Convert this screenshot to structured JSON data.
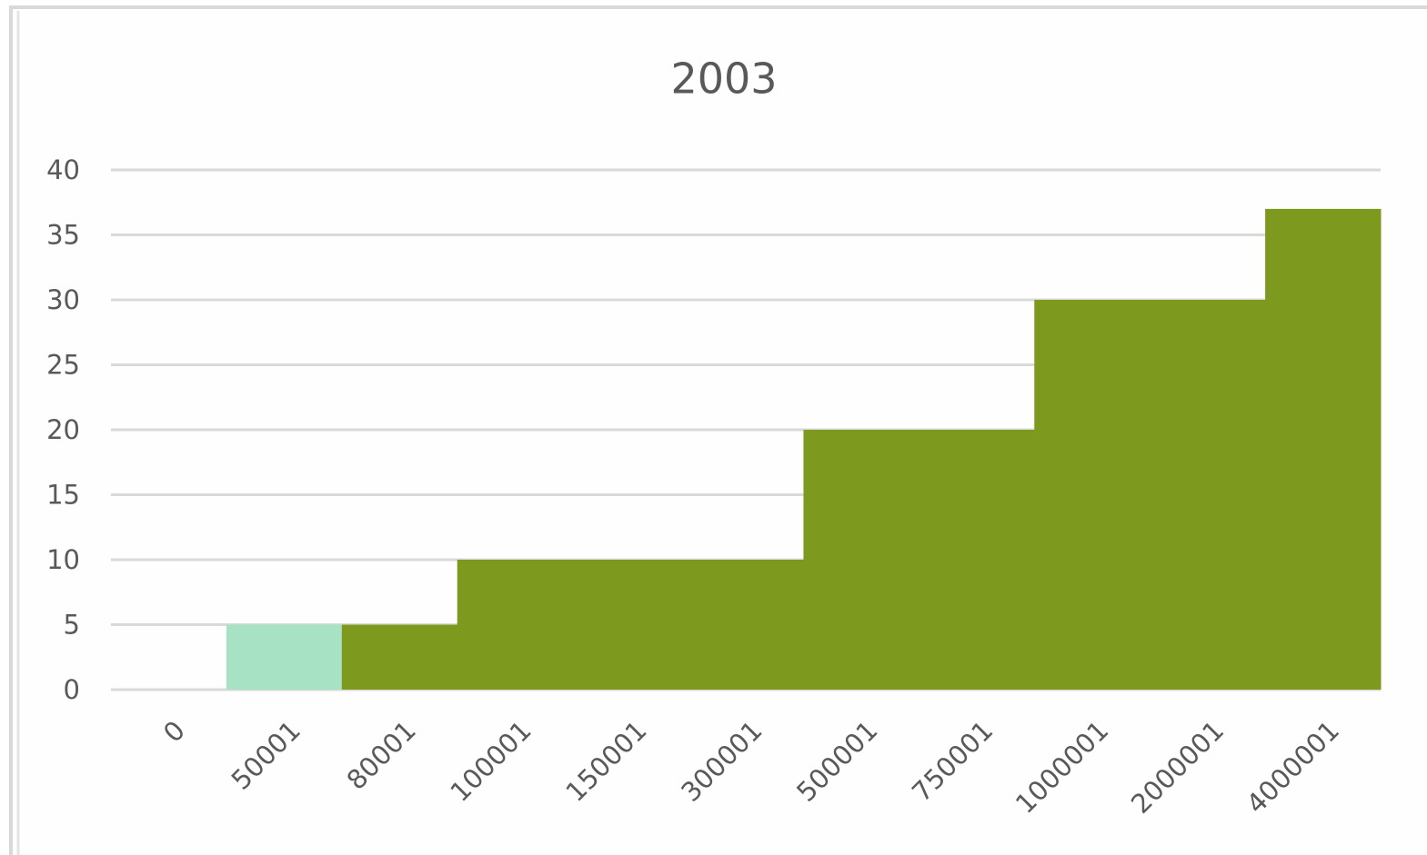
{
  "chart_data": {
    "type": "bar",
    "title": "2003",
    "categories": [
      "0",
      "50001",
      "80001",
      "100001",
      "150001",
      "300001",
      "500001",
      "750001",
      "1000001",
      "2000001",
      "4000001"
    ],
    "values": [
      0,
      5,
      5,
      10,
      10,
      10,
      20,
      20,
      30,
      30,
      37
    ],
    "colors": [
      "#7e9a1e",
      "#a8e2c4",
      "#7e9a1e",
      "#7e9a1e",
      "#7e9a1e",
      "#7e9a1e",
      "#7e9a1e",
      "#7e9a1e",
      "#7e9a1e",
      "#7e9a1e",
      "#7e9a1e"
    ],
    "ylim": [
      0,
      40
    ],
    "yticks": [
      0,
      5,
      10,
      15,
      20,
      25,
      30,
      35,
      40
    ],
    "grid": true
  }
}
